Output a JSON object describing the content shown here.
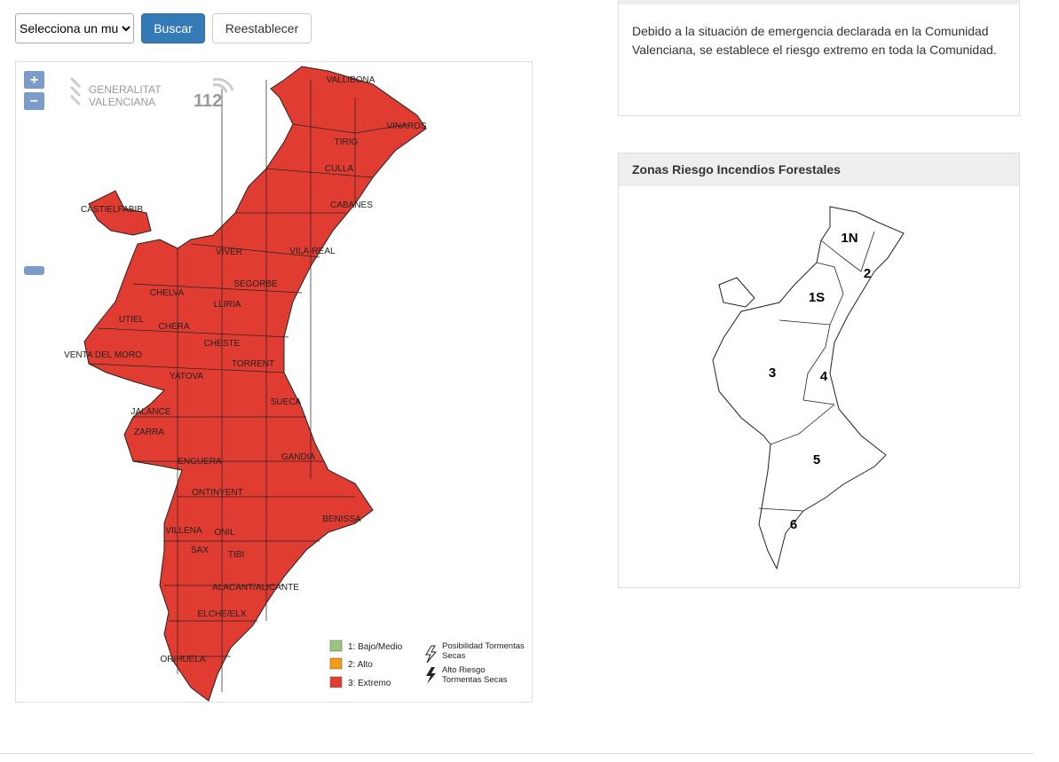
{
  "search": {
    "select_text": "Selecciona un mu",
    "buttons": [
      "Buscar",
      "Reestablecer"
    ]
  },
  "map": {
    "zoom_in": "+",
    "zoom_out": "−",
    "logo": [
      "GENERALITAT",
      "VALENCIANA"
    ],
    "logo_112": "112",
    "place_labels": [
      "VALLIBONA",
      "VINAROS",
      "TIRIG",
      "CULLA",
      "CABANES",
      "CASTIELFABIB",
      "VIVER",
      "VILA-REAL",
      "CHELVA",
      "SEGORBE",
      "LLIRIA",
      "UTIEL",
      "CHERA",
      "CHESTE",
      "VENTA DEL MORO",
      "TORRENT",
      "YATOVA",
      "SUECA",
      "JALANCE",
      "ZARRA",
      "GANDIA",
      "ENGUERA",
      "ONTINYENT",
      "BENISSA",
      "VILLENA",
      "ONIL",
      "SAX",
      "TIBI",
      "ALACANT/ALICANTE",
      "ELCHE/ELX",
      "ORIHUELA"
    ],
    "legend": {
      "risk_levels": [
        "1: Bajo/Medio",
        "2: Alto",
        "3: Extremo"
      ],
      "storms": [
        "Posibilidad Tormentas Secas",
        "Alto Riesgo Tormentas Secas"
      ]
    }
  },
  "notice": {
    "text": "Debido a la situación de emergencia declarada en la Comunidad Valenciana, se establece el riesgo extremo en toda la Comunidad."
  },
  "zones_panel": {
    "title": "Zonas Riesgo Incendios Forestales",
    "zone_labels": [
      "1N",
      "2",
      "1S",
      "3",
      "4",
      "5",
      "6"
    ]
  }
}
